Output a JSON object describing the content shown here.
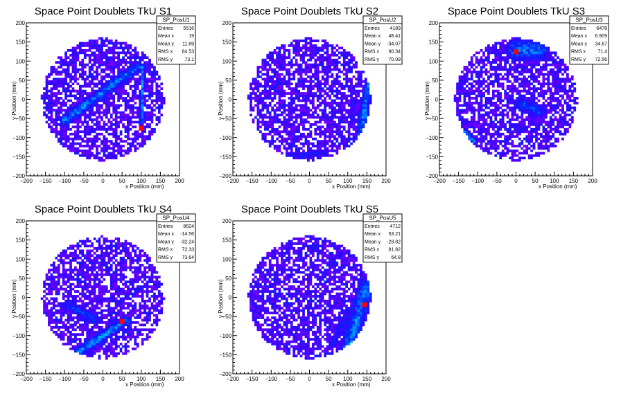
{
  "chart_data": [
    {
      "type": "heatmap",
      "title": "Space Point Doublets TkU S1",
      "xlabel": "x Position (mm)",
      "ylabel": "y Position (mm)",
      "xlim": [
        -200,
        200
      ],
      "ylim": [
        -200,
        200
      ],
      "xticks": [
        -200,
        -150,
        -100,
        -50,
        0,
        50,
        100,
        150,
        200
      ],
      "yticks": [
        -200,
        -150,
        -100,
        -50,
        0,
        50,
        100,
        150,
        200
      ],
      "xtick_labels": [
        "−200",
        "−150",
        "−100",
        "−50",
        "0",
        "50",
        "100",
        "150",
        "200"
      ],
      "ytick_labels": [
        "−200",
        "−150",
        "−100",
        "−50",
        "0",
        "50",
        "100",
        "150",
        "200"
      ],
      "stats": {
        "name": "SP_PosU1",
        "rows": [
          {
            "label": "Entries",
            "value": "5516"
          },
          {
            "label": "Mean x",
            "value": "19"
          },
          {
            "label": "Mean y",
            "value": "11.89"
          },
          {
            "label": "RMS x",
            "value": "84.53"
          },
          {
            "label": "RMS y",
            "value": "73.1"
          }
        ]
      },
      "features": [
        {
          "kind": "band",
          "from": [
            -100,
            -55
          ],
          "to": [
            90,
            85
          ],
          "width": 16,
          "level": 0.55
        },
        {
          "kind": "band",
          "from": [
            100,
            -60
          ],
          "to": [
            105,
            90
          ],
          "width": 6,
          "level": 0.6
        }
      ],
      "hotspots": [
        [
          100,
          -75
        ]
      ]
    },
    {
      "type": "heatmap",
      "title": "Space Point Doublets TkU S2",
      "xlabel": "x Position (mm)",
      "ylabel": "y Position (mm)",
      "xlim": [
        -200,
        200
      ],
      "ylim": [
        -200,
        200
      ],
      "xticks": [
        -200,
        -150,
        -100,
        -50,
        0,
        50,
        100,
        150,
        200
      ],
      "yticks": [
        -200,
        -150,
        -100,
        -50,
        0,
        50,
        100,
        150,
        200
      ],
      "xtick_labels": [
        "−200",
        "−150",
        "−100",
        "−50",
        "0",
        "50",
        "100",
        "150",
        "200"
      ],
      "ytick_labels": [
        "−200",
        "−150",
        "−100",
        "−50",
        "0",
        "50",
        "100",
        "150",
        "200"
      ],
      "stats": {
        "name": "SP_PosU2",
        "rows": [
          {
            "label": "Entries",
            "value": "4183"
          },
          {
            "label": "Mean x",
            "value": "48.41"
          },
          {
            "label": "Mean y",
            "value": "-34.07"
          },
          {
            "label": "RMS x",
            "value": "90.34"
          },
          {
            "label": "RMS y",
            "value": "70.09"
          }
        ]
      },
      "features": [
        {
          "kind": "band",
          "from": [
            130,
            -120
          ],
          "to": [
            155,
            40
          ],
          "width": 14,
          "level": 0.55
        },
        {
          "kind": "band",
          "from": [
            -60,
            -150
          ],
          "to": [
            40,
            -140
          ],
          "width": 10,
          "level": 0.35
        }
      ],
      "hotspots": []
    },
    {
      "type": "heatmap",
      "title": "Space Point Doublets TkU S3",
      "xlabel": "x Position (mm)",
      "ylabel": "y Position (mm)",
      "xlim": [
        -200,
        200
      ],
      "ylim": [
        -200,
        200
      ],
      "xticks": [
        -200,
        -150,
        -100,
        -50,
        0,
        50,
        100,
        150,
        200
      ],
      "yticks": [
        -200,
        -150,
        -100,
        -50,
        0,
        50,
        100,
        150,
        200
      ],
      "xtick_labels": [
        "−200",
        "−150",
        "−100",
        "−50",
        "0",
        "50",
        "100",
        "150",
        "200"
      ],
      "ytick_labels": [
        "−200",
        "−150",
        "−100",
        "−50",
        "0",
        "50",
        "100",
        "150",
        "200"
      ],
      "stats": {
        "name": "SP_PosU3",
        "rows": [
          {
            "label": "Entries",
            "value": "6478"
          },
          {
            "label": "Mean x",
            "value": "6.909"
          },
          {
            "label": "Mean y",
            "value": "34.67"
          },
          {
            "label": "RMS x",
            "value": "71.4"
          },
          {
            "label": "RMS y",
            "value": "72.56"
          }
        ]
      },
      "features": [
        {
          "kind": "band",
          "from": [
            0,
            130
          ],
          "to": [
            60,
            130
          ],
          "width": 30,
          "level": 0.55
        },
        {
          "kind": "band",
          "from": [
            10,
            -10
          ],
          "to": [
            60,
            -30
          ],
          "width": 18,
          "level": 0.45
        },
        {
          "kind": "band",
          "from": [
            -140,
            -80
          ],
          "to": [
            -110,
            -110
          ],
          "width": 10,
          "level": 0.5
        }
      ],
      "hotspots": [
        [
          0,
          125
        ]
      ]
    },
    {
      "type": "heatmap",
      "title": "Space Point Doublets TkU S4",
      "xlabel": "x Position (mm)",
      "ylabel": "y Position (mm)",
      "xlim": [
        -200,
        200
      ],
      "ylim": [
        -200,
        200
      ],
      "xticks": [
        -200,
        -150,
        -100,
        -50,
        0,
        50,
        100,
        150,
        200
      ],
      "yticks": [
        -200,
        -150,
        -100,
        -50,
        0,
        50,
        100,
        150,
        200
      ],
      "xtick_labels": [
        "−200",
        "−150",
        "−100",
        "−50",
        "0",
        "50",
        "100",
        "150",
        "200"
      ],
      "ytick_labels": [
        "−200",
        "−150",
        "−100",
        "−50",
        "0",
        "50",
        "100",
        "150",
        "200"
      ],
      "stats": {
        "name": "SP_PosU4",
        "rows": [
          {
            "label": "Entries",
            "value": "8624"
          },
          {
            "label": "Mean x",
            "value": "-14.56"
          },
          {
            "label": "Mean y",
            "value": "-32.24"
          },
          {
            "label": "RMS x",
            "value": "72.33"
          },
          {
            "label": "RMS y",
            "value": "73.64"
          }
        ]
      },
      "features": [
        {
          "kind": "band",
          "from": [
            -90,
            -20
          ],
          "to": [
            -20,
            -60
          ],
          "width": 14,
          "level": 0.45
        },
        {
          "kind": "band",
          "from": [
            -60,
            -140
          ],
          "to": [
            60,
            -60
          ],
          "width": 14,
          "level": 0.6
        }
      ],
      "hotspots": [
        [
          50,
          -65
        ]
      ]
    },
    {
      "type": "heatmap",
      "title": "Space Point Doublets TkU S5",
      "xlabel": "x Position (mm)",
      "ylabel": "y Position (mm)",
      "xlim": [
        -200,
        200
      ],
      "ylim": [
        -200,
        200
      ],
      "xticks": [
        -200,
        -150,
        -100,
        -50,
        0,
        50,
        100,
        150,
        200
      ],
      "yticks": [
        -200,
        -150,
        -100,
        -50,
        0,
        50,
        100,
        150,
        200
      ],
      "xtick_labels": [
        "−200",
        "−150",
        "−100",
        "−50",
        "0",
        "50",
        "100",
        "150",
        "200"
      ],
      "ytick_labels": [
        "−200",
        "−150",
        "−100",
        "−50",
        "0",
        "50",
        "100",
        "150",
        "200"
      ],
      "stats": {
        "name": "SP_PosU5",
        "rows": [
          {
            "label": "Entries",
            "value": "4712"
          },
          {
            "label": "Mean x",
            "value": "53.21"
          },
          {
            "label": "Mean y",
            "value": "-28.82"
          },
          {
            "label": "RMS x",
            "value": "81.82"
          },
          {
            "label": "RMS y",
            "value": "64.8"
          }
        ]
      },
      "features": [
        {
          "kind": "band",
          "from": [
            100,
            -140
          ],
          "to": [
            150,
            30
          ],
          "width": 24,
          "level": 0.55
        },
        {
          "kind": "band",
          "from": [
            60,
            -120
          ],
          "to": [
            100,
            -40
          ],
          "width": 10,
          "level": 0.35
        }
      ],
      "hotspots": [
        [
          145,
          -20
        ]
      ]
    }
  ]
}
